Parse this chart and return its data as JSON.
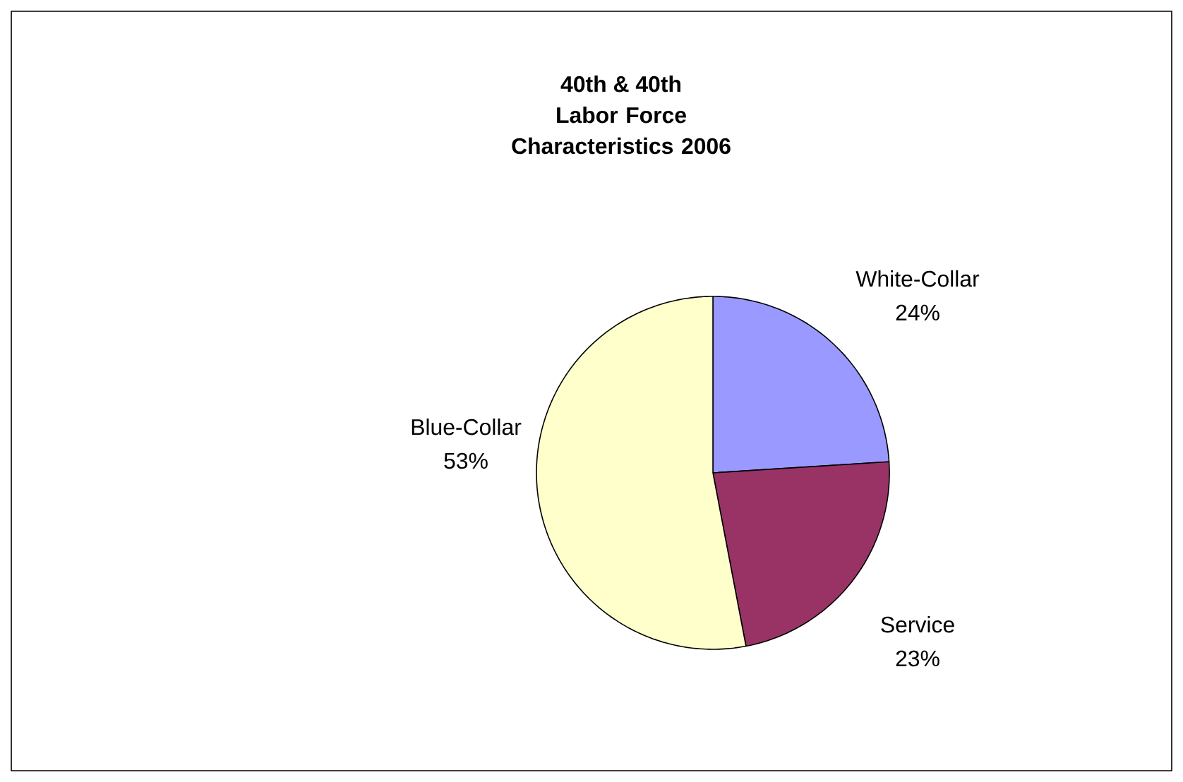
{
  "chart_data": {
    "type": "pie",
    "title": "40th & 40th",
    "subtitle": "Labor Force Characteristics 2006",
    "categories": [
      "White-Collar",
      "Service",
      "Blue-Collar"
    ],
    "values": [
      24,
      23,
      53
    ],
    "value_labels": [
      "24%",
      "23%",
      "53%"
    ],
    "colors": [
      "#9999ff",
      "#993366",
      "#ffffcc"
    ],
    "data_labels": true
  }
}
